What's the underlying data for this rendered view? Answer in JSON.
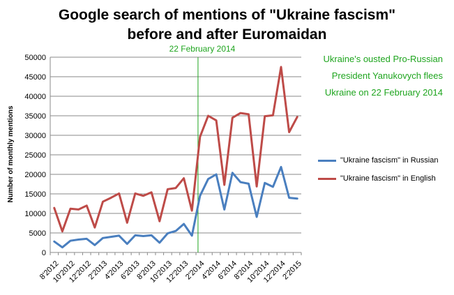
{
  "chart_data": {
    "type": "line",
    "title_line1": "Google search of mentions of \"Ukraine fascism\"",
    "title_line2": "before and after Euromaidan",
    "ylabel": "Number of monthly mentions",
    "ylim": [
      0,
      50000
    ],
    "yticks": [
      0,
      5000,
      10000,
      15000,
      20000,
      25000,
      30000,
      35000,
      40000,
      45000,
      50000
    ],
    "grid": true,
    "legend_position": "right",
    "x_tick_labels": [
      "8'2012",
      "10'2012",
      "12'2012",
      "2'2013",
      "4'2013",
      "6'2013",
      "8'2013",
      "10'2013",
      "12'2013",
      "2'2014",
      "4'2014",
      "6'2014",
      "8'2014",
      "10'2014",
      "12'2014",
      "2'2015"
    ],
    "x": [
      "8'2012",
      "9'2012",
      "10'2012",
      "11'2012",
      "12'2012",
      "1'2013",
      "2'2013",
      "3'2013",
      "4'2013",
      "5'2013",
      "6'2013",
      "7'2013",
      "8'2013",
      "9'2013",
      "10'2013",
      "11'2013",
      "12'2013",
      "1'2014",
      "2'2014",
      "3'2014",
      "4'2014",
      "5'2014",
      "6'2014",
      "7'2014",
      "8'2014",
      "9'2014",
      "10'2014",
      "11'2014",
      "12'2014",
      "1'2015",
      "2'2015"
    ],
    "series": [
      {
        "name": "\"Ukraine fascism\" in Russian",
        "color": "#4a7fbf",
        "values": [
          2800,
          1300,
          3000,
          3300,
          3500,
          1900,
          3700,
          4000,
          4300,
          2200,
          4400,
          4200,
          4400,
          2500,
          4900,
          5500,
          7300,
          4300,
          14500,
          18800,
          20000,
          11000,
          20400,
          18000,
          17600,
          9100,
          17800,
          16800,
          21900,
          14000,
          13800
        ]
      },
      {
        "name": "\"Ukraine fascism\" in English",
        "color": "#be4b48",
        "values": [
          11400,
          5400,
          11200,
          11000,
          12000,
          6400,
          13000,
          14000,
          15100,
          7600,
          15100,
          14500,
          15400,
          8000,
          16200,
          16500,
          19000,
          10700,
          29600,
          35000,
          33800,
          17300,
          34500,
          35700,
          35400,
          16900,
          34900,
          35100,
          47500,
          30800,
          34700
        ]
      }
    ],
    "event": {
      "label": "22 February 2014",
      "at": "2'2014",
      "color": "#1fa51f"
    },
    "annotation_lines": [
      "Ukraine's ousted Pro-Russian",
      "President Yanukovych flees",
      "Ukraine on 22 February 2014"
    ]
  }
}
